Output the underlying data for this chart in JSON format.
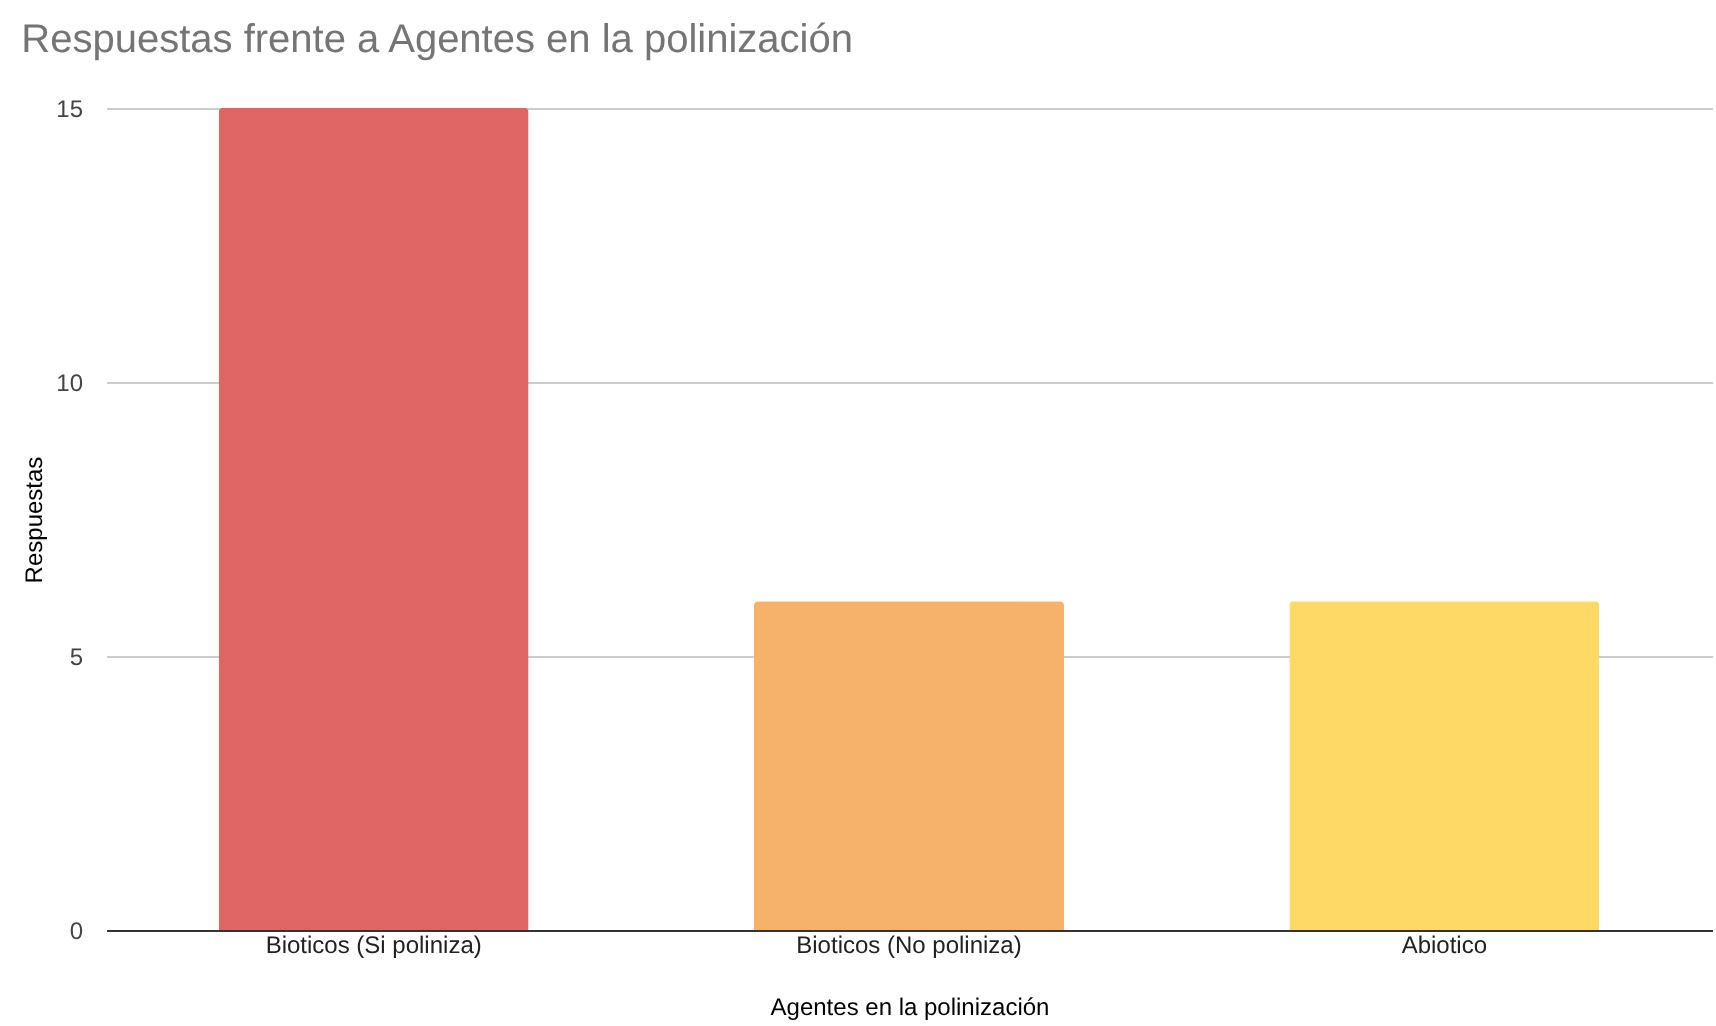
{
  "chart_data": {
    "type": "bar",
    "title": "Respuestas frente a Agentes en la polinización",
    "xlabel": "Agentes en la polinización",
    "ylabel": "Respuestas",
    "categories": [
      "Bioticos (Si poliniza)",
      "Bioticos (No poliniza)",
      "Abiotico"
    ],
    "values": [
      15,
      6,
      6
    ],
    "colors": [
      "#e06666",
      "#f6b26b",
      "#ffd966"
    ],
    "ylim": [
      0,
      15
    ],
    "yticks": [
      0,
      5,
      10,
      15
    ],
    "grid": "y",
    "legend": false
  }
}
